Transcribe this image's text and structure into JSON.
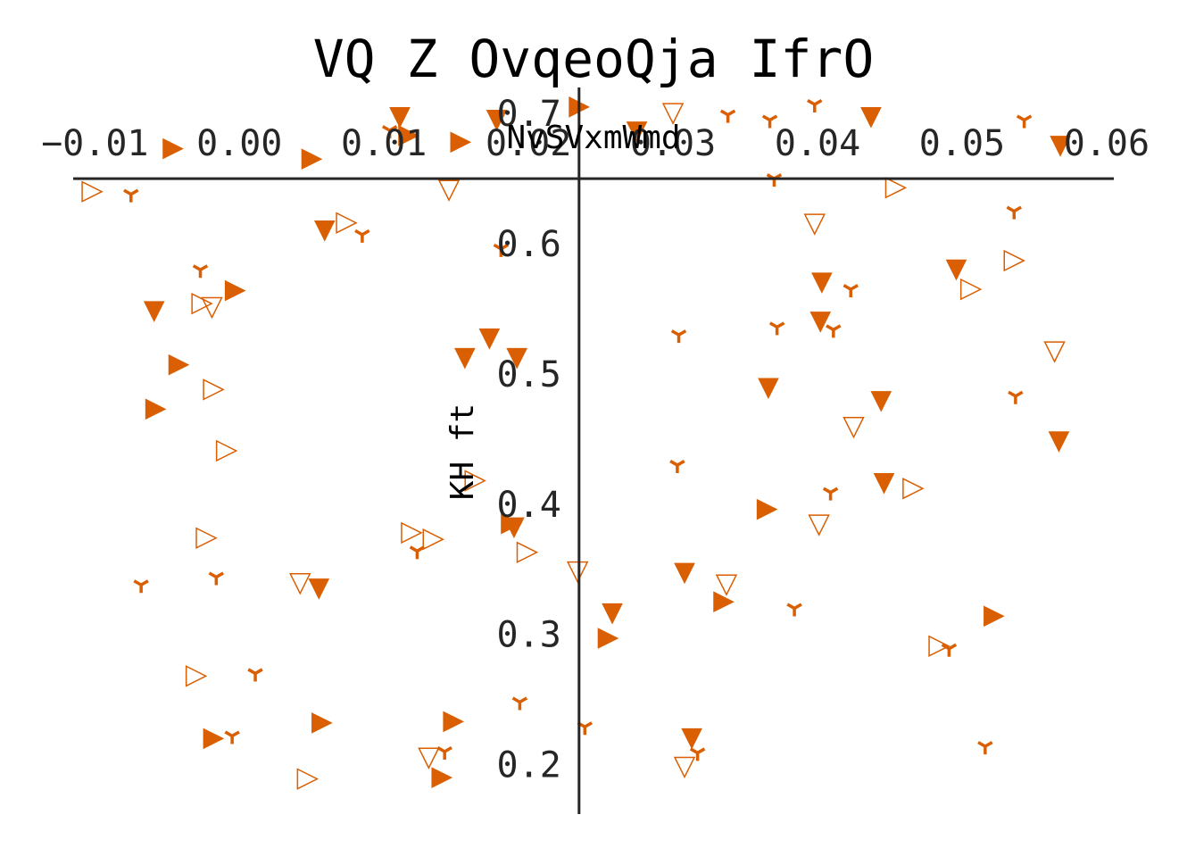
{
  "chart_data": {
    "type": "scatter",
    "title": "VQ Z OvqeoQja IfrO",
    "xlabel": "NvSVxmWmd",
    "ylabel": "KH ft",
    "xlim": [
      -0.0115,
      0.0605
    ],
    "ylim": [
      0.162,
      0.72
    ],
    "x_ticks": [
      -0.01,
      0.0,
      0.01,
      0.02,
      0.03,
      0.04,
      0.05,
      0.06
    ],
    "x_tick_labels": [
      "−0.01",
      "0.00",
      "0.01",
      "0.02",
      "0.03",
      "0.04",
      "0.05",
      "0.06"
    ],
    "y_ticks": [
      0.2,
      0.3,
      0.4,
      0.5,
      0.6,
      0.7
    ],
    "y_tick_labels": [
      "0.2",
      "0.3",
      "0.4",
      "0.5",
      "0.6",
      "0.7"
    ],
    "spines": "centered",
    "grid": false,
    "color": "#d95f02",
    "series": [
      {
        "marker": "tri-down-filled",
        "points": [
          [
            0.0111,
            0.697
          ],
          [
            0.0178,
            0.695
          ],
          [
            0.0275,
            0.686
          ],
          [
            0.0437,
            0.697
          ],
          [
            0.0568,
            0.675
          ],
          [
            0.0059,
            0.61
          ],
          [
            0.0403,
            0.57
          ],
          [
            0.0496,
            0.58
          ],
          [
            0.0402,
            0.54
          ],
          [
            -0.0059,
            0.548
          ],
          [
            0.0173,
            0.527
          ],
          [
            0.0156,
            0.512
          ],
          [
            0.0192,
            0.512
          ],
          [
            0.0366,
            0.489
          ],
          [
            0.0444,
            0.479
          ],
          [
            0.0567,
            0.448
          ],
          [
            0.0446,
            0.416
          ],
          [
            0.0055,
            0.335
          ],
          [
            0.0308,
            0.347
          ],
          [
            0.0313,
            0.22
          ],
          [
            0.019,
            0.382
          ],
          [
            0.0258,
            0.316
          ]
        ]
      },
      {
        "marker": "triangle-right-filled",
        "points": [
          [
            0.0235,
            0.705
          ],
          [
            0.0117,
            0.683
          ],
          [
            0.0153,
            0.678
          ],
          [
            -0.0046,
            0.673
          ],
          [
            0.005,
            0.665
          ],
          [
            -0.0003,
            0.564
          ],
          [
            -0.0042,
            0.507
          ],
          [
            -0.0058,
            0.473
          ],
          [
            0.0188,
            0.385
          ],
          [
            0.0365,
            0.396
          ],
          [
            0.0335,
            0.325
          ],
          [
            0.0522,
            0.314
          ],
          [
            0.0255,
            0.297
          ],
          [
            -0.0018,
            0.22
          ],
          [
            0.0057,
            0.232
          ],
          [
            0.0148,
            0.233
          ],
          [
            0.014,
            0.19
          ]
        ]
      },
      {
        "marker": "tri-down-hollow",
        "points": [
          [
            0.03,
            0.7
          ],
          [
            0.0145,
            0.641
          ],
          [
            0.0398,
            0.615
          ],
          [
            0.0564,
            0.517
          ],
          [
            0.0425,
            0.459
          ],
          [
            0.0401,
            0.384
          ],
          [
            0.0234,
            0.348
          ],
          [
            0.0337,
            0.338
          ],
          [
            0.0042,
            0.339
          ],
          [
            0.0131,
            0.205
          ],
          [
            0.0308,
            0.198
          ],
          [
            -0.0019,
            0.551
          ]
        ]
      },
      {
        "marker": "triangle-right-hollow",
        "points": [
          [
            -0.0102,
            0.64
          ],
          [
            0.0074,
            0.616
          ],
          [
            0.0454,
            0.643
          ],
          [
            0.0536,
            0.587
          ],
          [
            0.0506,
            0.565
          ],
          [
            -0.0026,
            0.554
          ],
          [
            -0.0018,
            0.488
          ],
          [
            -0.0009,
            0.441
          ],
          [
            0.0163,
            0.418
          ],
          [
            0.0466,
            0.412
          ],
          [
            -0.0023,
            0.374
          ],
          [
            0.0119,
            0.378
          ],
          [
            0.0134,
            0.373
          ],
          [
            0.0199,
            0.363
          ],
          [
            0.0484,
            0.291
          ],
          [
            -0.003,
            0.268
          ],
          [
            0.0047,
            0.189
          ]
        ]
      },
      {
        "marker": "tri-y",
        "points": [
          [
            0.0398,
            0.707
          ],
          [
            0.0338,
            0.699
          ],
          [
            0.0367,
            0.695
          ],
          [
            0.0543,
            0.695
          ],
          [
            0.0104,
            0.687
          ],
          [
            0.037,
            0.65
          ],
          [
            -0.0075,
            0.638
          ],
          [
            0.0536,
            0.625
          ],
          [
            0.0085,
            0.607
          ],
          [
            0.0181,
            0.596
          ],
          [
            -0.0027,
            0.58
          ],
          [
            0.0423,
            0.565
          ],
          [
            0.0372,
            0.536
          ],
          [
            0.0411,
            0.534
          ],
          [
            0.0304,
            0.53
          ],
          [
            0.0537,
            0.483
          ],
          [
            0.0303,
            0.43
          ],
          [
            0.0409,
            0.409
          ],
          [
            0.0123,
            0.364
          ],
          [
            -0.0016,
            0.344
          ],
          [
            -0.0068,
            0.338
          ],
          [
            0.0384,
            0.32
          ],
          [
            0.0491,
            0.289
          ],
          [
            0.0011,
            0.27
          ],
          [
            0.0194,
            0.248
          ],
          [
            0.0239,
            0.229
          ],
          [
            -0.0005,
            0.222
          ],
          [
            0.0142,
            0.21
          ],
          [
            0.0317,
            0.209
          ],
          [
            0.0516,
            0.214
          ]
        ]
      }
    ]
  }
}
